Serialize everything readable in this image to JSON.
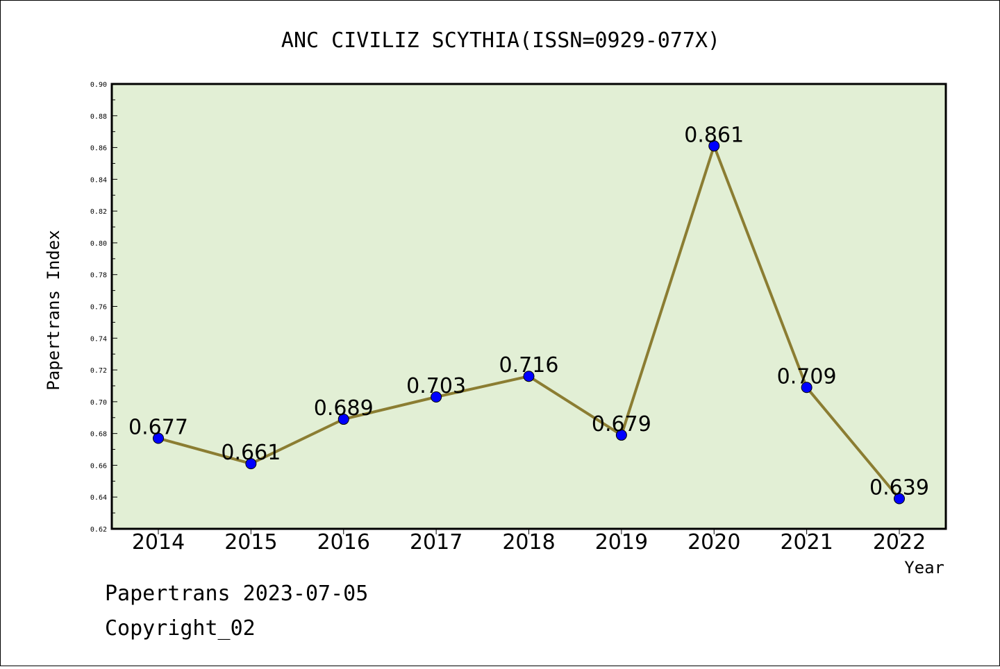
{
  "chart_data": {
    "type": "line",
    "title": "ANC CIVILIZ SCYTHIA(ISSN=0929-077X)",
    "xlabel": "Year",
    "ylabel": "Papertrans Index",
    "categories": [
      "2014",
      "2015",
      "2016",
      "2017",
      "2018",
      "2019",
      "2020",
      "2021",
      "2022"
    ],
    "values": [
      0.677,
      0.661,
      0.689,
      0.703,
      0.716,
      0.679,
      0.861,
      0.709,
      0.639
    ],
    "data_labels": [
      "0.677",
      "0.661",
      "0.689",
      "0.703",
      "0.716",
      "0.679",
      "0.861",
      "0.709",
      "0.639"
    ],
    "ylim": [
      0.62,
      0.9
    ],
    "yticks": [
      "0.62",
      "0.64",
      "0.66",
      "0.68",
      "0.70",
      "0.72",
      "0.74",
      "0.76",
      "0.78",
      "0.80",
      "0.82",
      "0.84",
      "0.86",
      "0.88",
      "0.90"
    ],
    "grid": false,
    "colors": {
      "plot_background": "#e2efd5",
      "line": "#8b7d32",
      "marker": "#0000ff"
    }
  },
  "footer": {
    "line1": "Papertrans 2023-07-05",
    "line2": "Copyright_02"
  }
}
